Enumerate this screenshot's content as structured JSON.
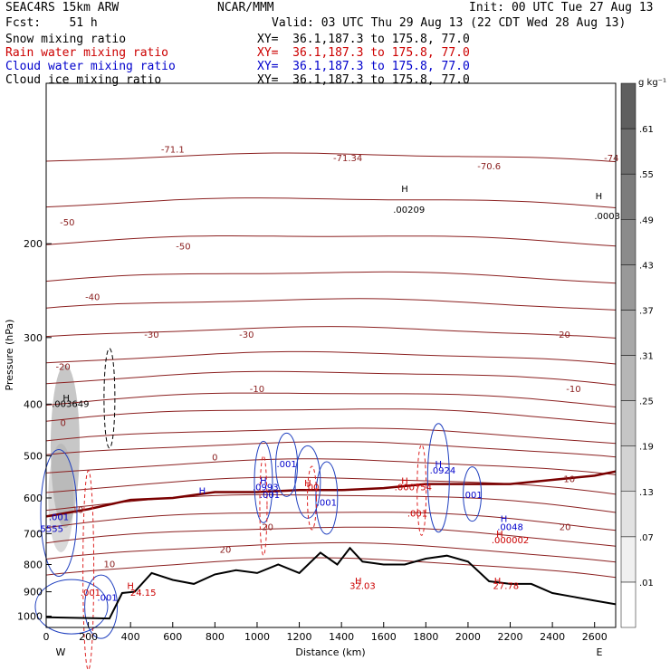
{
  "header": {
    "left1": "SEAC4RS 15km ARW",
    "left2": "Fcst:    51 h",
    "center1": "NCAR/MMM",
    "init": "Init: 00 UTC Tue 27 Aug 13",
    "valid": "Valid: 03 UTC Thu 29 Aug 13 (22 CDT Wed 28 Aug 13)",
    "fields": [
      {
        "name": "Snow mixing ratio",
        "xy": "XY=  36.1,187.3 to 175.8, 77.0",
        "color": "#000000"
      },
      {
        "name": "Rain water mixing ratio",
        "xy": "XY=  36.1,187.3 to 175.8, 77.0",
        "color": "#cc0000"
      },
      {
        "name": "Cloud water mixing ratio",
        "xy": "XY=  36.1,187.3 to 175.8, 77.0",
        "color": "#0000cc"
      },
      {
        "name": "Cloud ice mixing ratio",
        "xy": "XY=  36.1,187.3 to 175.8, 77.0",
        "color": "#000000"
      }
    ]
  },
  "chart_data": {
    "type": "cross-section",
    "xlabel": "Distance (km)",
    "ylabel": "Pressure (hPa)",
    "x_ticks": [
      0,
      200,
      400,
      600,
      800,
      1000,
      1200,
      1400,
      1600,
      1800,
      2000,
      2200,
      2400,
      2600
    ],
    "y_ticks": [
      200,
      300,
      400,
      500,
      600,
      700,
      800,
      900,
      1000
    ],
    "xlim": [
      0,
      2700
    ],
    "ylim": [
      1050,
      100
    ],
    "y_scale": "log",
    "left_end": "W",
    "right_end": "E",
    "colorbar": {
      "unit": "g kg⁻¹",
      "levels": [
        ".01",
        ".07",
        ".13",
        ".19",
        ".25",
        ".31",
        ".37",
        ".43",
        ".49",
        ".55",
        ".61"
      ]
    },
    "temperature_labels": [
      "-74",
      "-71.1",
      "-71.34",
      "-70.6",
      "-50",
      "-50",
      "-40",
      "-30",
      "-30",
      "-20",
      "-20",
      "-10",
      "-10",
      "0",
      "0",
      "10",
      "10",
      "10",
      "20",
      "20",
      "20"
    ],
    "temperature_lines_p": [
      140,
      170,
      200,
      235,
      265,
      300,
      335,
      365,
      400,
      430,
      470,
      500,
      540,
      585,
      630,
      680,
      730,
      785,
      840
    ],
    "freezing_line": [
      [
        0,
        650
      ],
      [
        200,
        630
      ],
      [
        400,
        605
      ],
      [
        600,
        600
      ],
      [
        800,
        585
      ],
      [
        1000,
        585
      ],
      [
        1200,
        580
      ],
      [
        1400,
        580
      ],
      [
        1600,
        575
      ],
      [
        1800,
        565
      ],
      [
        2000,
        565
      ],
      [
        2200,
        565
      ],
      [
        2400,
        555
      ],
      [
        2600,
        545
      ],
      [
        2700,
        535
      ]
    ],
    "terrain": [
      [
        0,
        1005
      ],
      [
        300,
        1010
      ],
      [
        360,
        905
      ],
      [
        420,
        900
      ],
      [
        500,
        830
      ],
      [
        600,
        855
      ],
      [
        700,
        870
      ],
      [
        800,
        835
      ],
      [
        900,
        820
      ],
      [
        1000,
        830
      ],
      [
        1100,
        800
      ],
      [
        1200,
        830
      ],
      [
        1300,
        760
      ],
      [
        1380,
        800
      ],
      [
        1440,
        745
      ],
      [
        1500,
        790
      ],
      [
        1600,
        800
      ],
      [
        1700,
        800
      ],
      [
        1800,
        780
      ],
      [
        1900,
        770
      ],
      [
        2000,
        790
      ],
      [
        2100,
        860
      ],
      [
        2200,
        870
      ],
      [
        2300,
        870
      ],
      [
        2400,
        905
      ],
      [
        2500,
        920
      ],
      [
        2600,
        935
      ],
      [
        2700,
        950
      ]
    ],
    "annotations": [
      {
        "text": "H",
        "x": 95,
        "y": 395,
        "color": "#000000"
      },
      {
        "text": ".003649",
        "x": 115,
        "y": 405,
        "color": "#000000"
      },
      {
        "text": "H",
        "x": 1700,
        "y": 160,
        "color": "#000000"
      },
      {
        "text": ".00209",
        "x": 1720,
        "y": 175,
        "color": "#000000"
      },
      {
        "text": "H",
        "x": 2620,
        "y": 165,
        "color": "#000000"
      },
      {
        "text": ".0003",
        "x": 2660,
        "y": 180,
        "color": "#000000"
      },
      {
        "text": "H",
        "x": 1030,
        "y": 565,
        "color": "#0000cc"
      },
      {
        "text": ".0993",
        "x": 1040,
        "y": 580,
        "color": "#0000cc"
      },
      {
        "text": "H",
        "x": 740,
        "y": 590,
        "color": "#0000cc"
      },
      {
        "text": ".001",
        "x": 1140,
        "y": 525,
        "color": "#0000cc"
      },
      {
        "text": ".001",
        "x": 1330,
        "y": 620,
        "color": "#0000cc"
      },
      {
        "text": ".001",
        "x": 1060,
        "y": 600,
        "color": "#0000cc"
      },
      {
        "text": "H",
        "x": 1860,
        "y": 525,
        "color": "#0000cc"
      },
      {
        "text": ".0924",
        "x": 1880,
        "y": 540,
        "color": "#0000cc"
      },
      {
        "text": ".001",
        "x": 2020,
        "y": 600,
        "color": "#0000cc"
      },
      {
        "text": "H",
        "x": 1240,
        "y": 570,
        "color": "#cc0000"
      },
      {
        "text": ".00",
        "x": 1260,
        "y": 580,
        "color": "#cc0000"
      },
      {
        "text": "H",
        "x": 1700,
        "y": 565,
        "color": "#cc0000"
      },
      {
        "text": ".000754",
        "x": 1740,
        "y": 580,
        "color": "#cc0000"
      },
      {
        "text": ".001",
        "x": 1760,
        "y": 650,
        "color": "#cc0000"
      },
      {
        "text": "H",
        "x": 2170,
        "y": 665,
        "color": "#0000cc"
      },
      {
        "text": ".0048",
        "x": 2200,
        "y": 690,
        "color": "#0000cc"
      },
      {
        "text": "H",
        "x": 2150,
        "y": 710,
        "color": "#cc0000"
      },
      {
        "text": ".000002",
        "x": 2200,
        "y": 730,
        "color": "#cc0000"
      },
      {
        "text": ".001",
        "x": 60,
        "y": 660,
        "color": "#0000cc"
      },
      {
        "text": ".5555",
        "x": 20,
        "y": 695,
        "color": "#0000cc"
      },
      {
        "text": ".001",
        "x": 290,
        "y": 935,
        "color": "#0000cc"
      },
      {
        "text": ".001",
        "x": 210,
        "y": 915,
        "color": "#cc0000"
      },
      {
        "text": "H",
        "x": 400,
        "y": 890,
        "color": "#cc0000"
      },
      {
        "text": "24.15",
        "x": 460,
        "y": 915,
        "color": "#cc0000"
      },
      {
        "text": "H",
        "x": 1480,
        "y": 870,
        "color": "#cc0000"
      },
      {
        "text": "32.03",
        "x": 1500,
        "y": 890,
        "color": "#cc0000"
      },
      {
        "text": "H",
        "x": 2140,
        "y": 870,
        "color": "#cc0000"
      },
      {
        "text": "27.78",
        "x": 2180,
        "y": 890,
        "color": "#cc0000"
      }
    ]
  }
}
